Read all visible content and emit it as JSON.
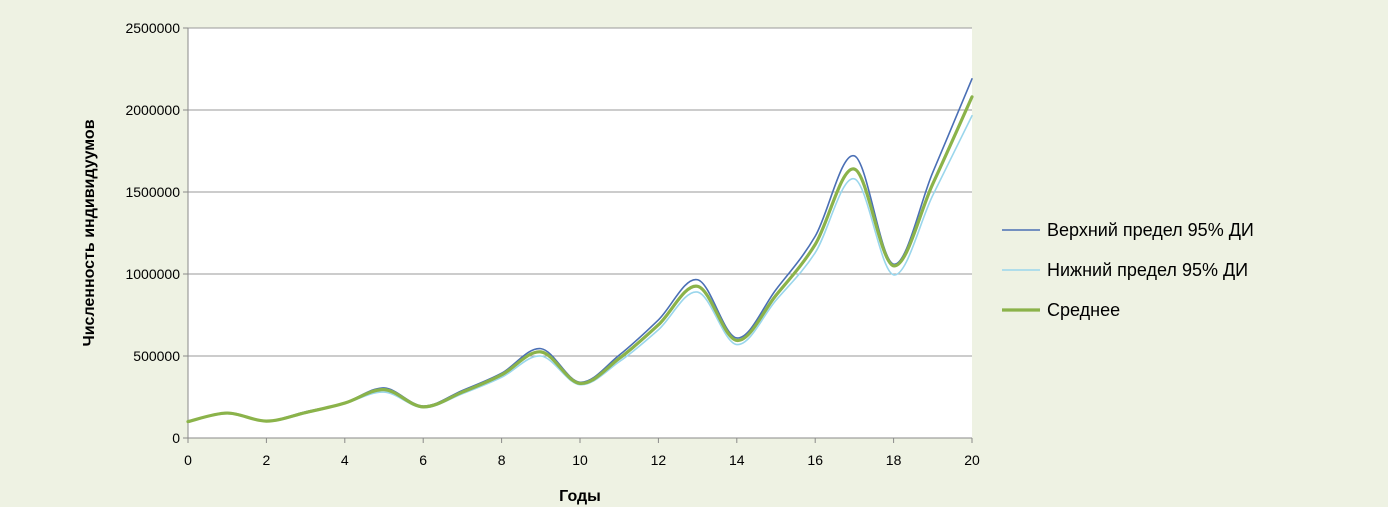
{
  "chart_data": {
    "type": "line",
    "title": "",
    "xlabel": "Годы",
    "ylabel": "Численность индивидуумов",
    "xlim": [
      0,
      20
    ],
    "ylim": [
      0,
      2500000
    ],
    "x_ticks": [
      0,
      2,
      4,
      6,
      8,
      10,
      12,
      14,
      16,
      18,
      20
    ],
    "y_ticks": [
      0,
      500000,
      1000000,
      1500000,
      2000000,
      2500000
    ],
    "grid": "horizontal",
    "legend_position": "right",
    "x": [
      0,
      1,
      2,
      3,
      4,
      5,
      6,
      7,
      8,
      9,
      10,
      11,
      12,
      13,
      14,
      15,
      16,
      17,
      18,
      19,
      20
    ],
    "series": [
      {
        "name": "Верхний предел 95% ДИ",
        "color": "#4a6fb5",
        "values": [
          100000,
          155000,
          105000,
          160000,
          215000,
          305000,
          195000,
          290000,
          395000,
          545000,
          340000,
          505000,
          720000,
          965000,
          610000,
          905000,
          1230000,
          1720000,
          1060000,
          1620000,
          2190000
        ]
      },
      {
        "name": "Нижний предел 95% ДИ",
        "color": "#9ad6ec",
        "values": [
          100000,
          148000,
          100000,
          150000,
          210000,
          280000,
          185000,
          270000,
          370000,
          500000,
          325000,
          465000,
          660000,
          890000,
          570000,
          840000,
          1130000,
          1580000,
          995000,
          1480000,
          1965000
        ]
      },
      {
        "name": "Среднее",
        "color": "#8bb34a",
        "values": [
          100000,
          152000,
          103000,
          155000,
          213000,
          295000,
          190000,
          280000,
          385000,
          525000,
          333000,
          485000,
          690000,
          925000,
          595000,
          870000,
          1180000,
          1640000,
          1050000,
          1550000,
          2080000
        ]
      }
    ]
  }
}
